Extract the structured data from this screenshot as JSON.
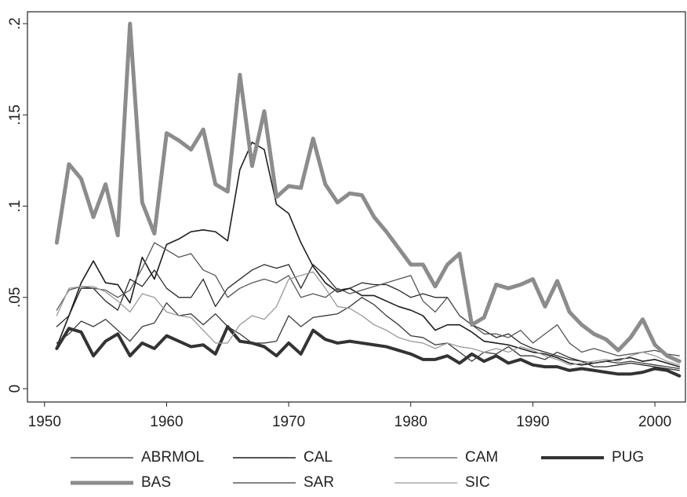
{
  "chart_data": {
    "type": "line",
    "x": [
      1951,
      1952,
      1953,
      1954,
      1955,
      1956,
      1957,
      1958,
      1959,
      1960,
      1961,
      1962,
      1963,
      1964,
      1965,
      1966,
      1967,
      1968,
      1969,
      1970,
      1971,
      1972,
      1973,
      1974,
      1975,
      1976,
      1977,
      1978,
      1979,
      1980,
      1981,
      1982,
      1983,
      1984,
      1985,
      1986,
      1987,
      1988,
      1989,
      1990,
      1991,
      1992,
      1993,
      1994,
      1995,
      1996,
      1997,
      1998,
      1999,
      2000,
      2001,
      2002
    ],
    "xlim": [
      1948.6,
      2002.5
    ],
    "xticks": [
      1950,
      1960,
      1970,
      1980,
      1990,
      2000
    ],
    "ylim": [
      -0.0073,
      0.2065
    ],
    "yticks": [
      0,
      {
        "value": 0.05,
        "label": ".05"
      },
      {
        "value": 0.1,
        "label": ".1"
      },
      {
        "value": 0.15,
        "label": ".15"
      },
      {
        "value": 0.2,
        "label": ".2"
      }
    ],
    "grid": false,
    "legend": "bottom",
    "series": [
      {
        "name": "ABRMOL",
        "color": "#2a2a2a",
        "linewidth": 1.3,
        "values": [
          0.034,
          0.04,
          0.055,
          0.055,
          0.048,
          0.043,
          0.06,
          0.056,
          0.065,
          0.055,
          0.05,
          0.05,
          0.06,
          0.045,
          0.055,
          0.06,
          0.065,
          0.068,
          0.066,
          0.068,
          0.055,
          0.068,
          0.062,
          0.054,
          0.055,
          0.058,
          0.057,
          0.057,
          0.054,
          0.05,
          0.052,
          0.05,
          0.05,
          0.04,
          0.035,
          0.032,
          0.028,
          0.03,
          0.025,
          0.022,
          0.02,
          0.018,
          0.016,
          0.015,
          0.012,
          0.012,
          0.013,
          0.014,
          0.013,
          0.012,
          0.011,
          0.01
        ]
      },
      {
        "name": "CAL",
        "color": "#1e1e1e",
        "linewidth": 1.6,
        "values": [
          0.023,
          0.04,
          0.058,
          0.07,
          0.058,
          0.057,
          0.047,
          0.072,
          0.06,
          0.079,
          0.082,
          0.086,
          0.087,
          0.086,
          0.081,
          0.12,
          0.135,
          0.131,
          0.101,
          0.096,
          0.08,
          0.067,
          0.058,
          0.053,
          0.055,
          0.051,
          0.051,
          0.048,
          0.045,
          0.043,
          0.04,
          0.032,
          0.035,
          0.035,
          0.031,
          0.026,
          0.025,
          0.024,
          0.022,
          0.02,
          0.019,
          0.017,
          0.014,
          0.013,
          0.014,
          0.015,
          0.016,
          0.017,
          0.015,
          0.016,
          0.014,
          0.012
        ]
      },
      {
        "name": "CAM",
        "color": "#555555",
        "linewidth": 1.3,
        "values": [
          0.043,
          0.054,
          0.056,
          0.055,
          0.054,
          0.05,
          0.054,
          0.066,
          0.08,
          0.076,
          0.072,
          0.074,
          0.065,
          0.062,
          0.05,
          0.055,
          0.058,
          0.06,
          0.058,
          0.062,
          0.05,
          0.052,
          0.05,
          0.055,
          0.052,
          0.054,
          0.056,
          0.058,
          0.06,
          0.062,
          0.048,
          0.042,
          0.05,
          0.04,
          0.035,
          0.03,
          0.03,
          0.028,
          0.032,
          0.025,
          0.03,
          0.035,
          0.025,
          0.02,
          0.022,
          0.02,
          0.018,
          0.019,
          0.02,
          0.021,
          0.019,
          0.018
        ]
      },
      {
        "name": "PUG",
        "color": "#333333",
        "linewidth": 4,
        "values": [
          0.022,
          0.033,
          0.031,
          0.018,
          0.026,
          0.03,
          0.018,
          0.025,
          0.022,
          0.029,
          0.026,
          0.023,
          0.024,
          0.019,
          0.034,
          0.026,
          0.025,
          0.023,
          0.018,
          0.025,
          0.019,
          0.032,
          0.027,
          0.025,
          0.026,
          0.025,
          0.024,
          0.023,
          0.021,
          0.019,
          0.016,
          0.016,
          0.018,
          0.014,
          0.019,
          0.015,
          0.018,
          0.014,
          0.016,
          0.013,
          0.012,
          0.012,
          0.01,
          0.011,
          0.01,
          0.009,
          0.008,
          0.008,
          0.009,
          0.011,
          0.01,
          0.007
        ]
      },
      {
        "name": "BAS",
        "color": "#8c8c8c",
        "linewidth": 5,
        "values": [
          0.08,
          0.123,
          0.115,
          0.094,
          0.112,
          0.084,
          0.2,
          0.102,
          0.085,
          0.14,
          0.136,
          0.131,
          0.142,
          0.112,
          0.108,
          0.172,
          0.122,
          0.152,
          0.105,
          0.111,
          0.11,
          0.137,
          0.112,
          0.102,
          0.107,
          0.106,
          0.094,
          0.086,
          0.077,
          0.068,
          0.068,
          0.056,
          0.068,
          0.074,
          0.035,
          0.039,
          0.057,
          0.055,
          0.057,
          0.06,
          0.045,
          0.059,
          0.042,
          0.035,
          0.03,
          0.027,
          0.021,
          0.028,
          0.038,
          0.024,
          0.018,
          0.015
        ]
      },
      {
        "name": "SAR",
        "color": "#3a3a3a",
        "linewidth": 1.3,
        "values": [
          0.025,
          0.03,
          0.037,
          0.034,
          0.038,
          0.032,
          0.026,
          0.034,
          0.036,
          0.047,
          0.04,
          0.041,
          0.035,
          0.041,
          0.034,
          0.03,
          0.025,
          0.025,
          0.026,
          0.04,
          0.034,
          0.039,
          0.04,
          0.041,
          0.045,
          0.05,
          0.046,
          0.04,
          0.035,
          0.029,
          0.028,
          0.024,
          0.025,
          0.02,
          0.015,
          0.02,
          0.019,
          0.023,
          0.018,
          0.018,
          0.016,
          0.02,
          0.017,
          0.015,
          0.014,
          0.015,
          0.014,
          0.015,
          0.014,
          0.013,
          0.012,
          0.011
        ]
      },
      {
        "name": "SIC",
        "color": "#9a9a9a",
        "linewidth": 1.3,
        "values": [
          0.04,
          0.055,
          0.056,
          0.056,
          0.053,
          0.048,
          0.042,
          0.052,
          0.05,
          0.042,
          0.04,
          0.039,
          0.032,
          0.025,
          0.025,
          0.035,
          0.04,
          0.038,
          0.045,
          0.06,
          0.062,
          0.064,
          0.055,
          0.045,
          0.044,
          0.04,
          0.035,
          0.032,
          0.028,
          0.026,
          0.025,
          0.022,
          0.025,
          0.023,
          0.022,
          0.02,
          0.022,
          0.02,
          0.023,
          0.021,
          0.018,
          0.016,
          0.013,
          0.014,
          0.015,
          0.016,
          0.015,
          0.018,
          0.02,
          0.018,
          0.015,
          0.013
        ]
      }
    ]
  }
}
